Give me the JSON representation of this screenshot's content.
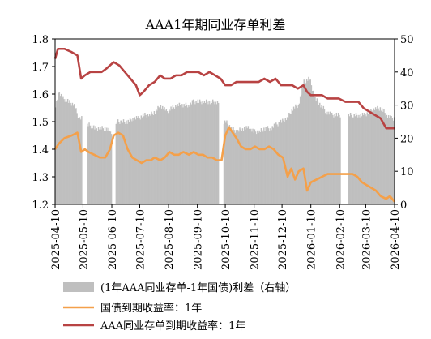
{
  "chart_data": {
    "type": "bar+line",
    "title": "AAA1年期同业存单利差",
    "yaxis_left": {
      "min": 1.2,
      "max": 1.8,
      "ticks": [
        "1.2",
        "1.3",
        "1.4",
        "1.5",
        "1.6",
        "1.7",
        "1.8"
      ]
    },
    "yaxis_right": {
      "min": 0,
      "max": 50,
      "ticks": [
        "0",
        "10",
        "20",
        "30",
        "40",
        "50"
      ]
    },
    "x_ticks": [
      "2025-04-10",
      "2025-05-10",
      "2025-06-10",
      "2025-07-10",
      "2025-08-10",
      "2025-09-10",
      "2025-10-10",
      "2025-11-10",
      "2025-12-10",
      "2026-01-10",
      "2026-02-10",
      "2026-03-10",
      "2026-04-10"
    ],
    "x_range": [
      "2025-04-10",
      "2026-04-10"
    ],
    "legend_position": "bottom",
    "series": [
      {
        "name": "(1年AAA同业存单-1年国债)利差（右轴）",
        "kind": "bar",
        "axis": "right",
        "color": "#bfbfbf",
        "points": [
          [
            "2025-04-10",
            30
          ],
          [
            "2025-04-14",
            34
          ],
          [
            "2025-04-18",
            32
          ],
          [
            "2025-04-24",
            31
          ],
          [
            "2025-04-30",
            30
          ],
          [
            "2025-05-05",
            26
          ],
          [
            "2025-05-12",
            0
          ],
          [
            "2025-05-16",
            24
          ],
          [
            "2025-05-22",
            23
          ],
          [
            "2025-05-28",
            23
          ],
          [
            "2025-06-03",
            23
          ],
          [
            "2025-06-08",
            22
          ],
          [
            "2025-06-12",
            0
          ],
          [
            "2025-06-15",
            25
          ],
          [
            "2025-06-20",
            25
          ],
          [
            "2025-06-26",
            25
          ],
          [
            "2025-07-02",
            26
          ],
          [
            "2025-07-08",
            26
          ],
          [
            "2025-07-14",
            27
          ],
          [
            "2025-07-20",
            27
          ],
          [
            "2025-07-26",
            28
          ],
          [
            "2025-08-01",
            30
          ],
          [
            "2025-08-07",
            28
          ],
          [
            "2025-08-13",
            29
          ],
          [
            "2025-08-19",
            30
          ],
          [
            "2025-08-25",
            30
          ],
          [
            "2025-08-31",
            30
          ],
          [
            "2025-09-05",
            31
          ],
          [
            "2025-09-11",
            31
          ],
          [
            "2025-09-17",
            31
          ],
          [
            "2025-09-23",
            31
          ],
          [
            "2025-09-29",
            31
          ],
          [
            "2025-10-06",
            0
          ],
          [
            "2025-10-10",
            25
          ],
          [
            "2025-10-16",
            23
          ],
          [
            "2025-10-22",
            22
          ],
          [
            "2025-10-28",
            23
          ],
          [
            "2025-11-03",
            23
          ],
          [
            "2025-11-09",
            22
          ],
          [
            "2025-11-15",
            22
          ],
          [
            "2025-11-21",
            23
          ],
          [
            "2025-11-27",
            23
          ],
          [
            "2025-12-03",
            24
          ],
          [
            "2025-12-09",
            25
          ],
          [
            "2025-12-15",
            26
          ],
          [
            "2025-12-21",
            29
          ],
          [
            "2025-12-27",
            30
          ],
          [
            "2026-01-02",
            37
          ],
          [
            "2026-01-08",
            38
          ],
          [
            "2026-01-14",
            32
          ],
          [
            "2026-01-20",
            30
          ],
          [
            "2026-01-26",
            28
          ],
          [
            "2026-02-01",
            27
          ],
          [
            "2026-02-07",
            27
          ],
          [
            "2026-02-14",
            0
          ],
          [
            "2026-02-24",
            27
          ],
          [
            "2026-03-02",
            27
          ],
          [
            "2026-03-08",
            27
          ],
          [
            "2026-03-14",
            28
          ],
          [
            "2026-03-20",
            29
          ],
          [
            "2026-03-26",
            29
          ],
          [
            "2026-04-01",
            27
          ],
          [
            "2026-04-06",
            26
          ],
          [
            "2026-04-10",
            26
          ]
        ]
      },
      {
        "name": "国债到期收益率：1年",
        "kind": "line",
        "axis": "left",
        "color": "#f4a04a",
        "points": [
          [
            "2025-04-10",
            1.4
          ],
          [
            "2025-04-14",
            1.42
          ],
          [
            "2025-04-20",
            1.44
          ],
          [
            "2025-04-28",
            1.45
          ],
          [
            "2025-05-04",
            1.46
          ],
          [
            "2025-05-08",
            1.39
          ],
          [
            "2025-05-12",
            1.4
          ],
          [
            "2025-05-16",
            1.39
          ],
          [
            "2025-05-22",
            1.38
          ],
          [
            "2025-05-28",
            1.37
          ],
          [
            "2025-06-03",
            1.37
          ],
          [
            "2025-06-08",
            1.4
          ],
          [
            "2025-06-12",
            1.45
          ],
          [
            "2025-06-17",
            1.46
          ],
          [
            "2025-06-22",
            1.45
          ],
          [
            "2025-06-27",
            1.4
          ],
          [
            "2025-07-02",
            1.37
          ],
          [
            "2025-07-07",
            1.36
          ],
          [
            "2025-07-12",
            1.35
          ],
          [
            "2025-07-17",
            1.36
          ],
          [
            "2025-07-22",
            1.36
          ],
          [
            "2025-07-26",
            1.37
          ],
          [
            "2025-08-01",
            1.36
          ],
          [
            "2025-08-06",
            1.37
          ],
          [
            "2025-08-11",
            1.39
          ],
          [
            "2025-08-16",
            1.38
          ],
          [
            "2025-08-21",
            1.38
          ],
          [
            "2025-08-26",
            1.39
          ],
          [
            "2025-09-01",
            1.38
          ],
          [
            "2025-09-06",
            1.39
          ],
          [
            "2025-09-11",
            1.38
          ],
          [
            "2025-09-16",
            1.38
          ],
          [
            "2025-09-21",
            1.37
          ],
          [
            "2025-09-26",
            1.37
          ],
          [
            "2025-10-01",
            1.36
          ],
          [
            "2025-10-06",
            1.36
          ],
          [
            "2025-10-10",
            1.45
          ],
          [
            "2025-10-14",
            1.48
          ],
          [
            "2025-10-18",
            1.46
          ],
          [
            "2025-10-22",
            1.44
          ],
          [
            "2025-10-27",
            1.41
          ],
          [
            "2025-11-01",
            1.4
          ],
          [
            "2025-11-06",
            1.4
          ],
          [
            "2025-11-11",
            1.41
          ],
          [
            "2025-11-16",
            1.4
          ],
          [
            "2025-11-21",
            1.4
          ],
          [
            "2025-11-26",
            1.41
          ],
          [
            "2025-12-01",
            1.4
          ],
          [
            "2025-12-06",
            1.38
          ],
          [
            "2025-12-11",
            1.37
          ],
          [
            "2025-12-16",
            1.3
          ],
          [
            "2025-12-20",
            1.33
          ],
          [
            "2025-12-24",
            1.29
          ],
          [
            "2025-12-28",
            1.32
          ],
          [
            "2026-01-02",
            1.33
          ],
          [
            "2026-01-06",
            1.25
          ],
          [
            "2026-01-10",
            1.28
          ],
          [
            "2026-01-16",
            1.29
          ],
          [
            "2026-01-22",
            1.3
          ],
          [
            "2026-01-28",
            1.31
          ],
          [
            "2026-02-03",
            1.31
          ],
          [
            "2026-02-09",
            1.31
          ],
          [
            "2026-02-16",
            1.31
          ],
          [
            "2026-02-24",
            1.31
          ],
          [
            "2026-03-01",
            1.3
          ],
          [
            "2026-03-06",
            1.28
          ],
          [
            "2026-03-11",
            1.27
          ],
          [
            "2026-03-16",
            1.26
          ],
          [
            "2026-03-21",
            1.25
          ],
          [
            "2026-03-26",
            1.23
          ],
          [
            "2026-04-01",
            1.22
          ],
          [
            "2026-04-05",
            1.23
          ],
          [
            "2026-04-10",
            1.21
          ]
        ]
      },
      {
        "name": "AAA同业存单到期收益率：1年",
        "kind": "line",
        "axis": "right",
        "color": "#b84343",
        "points": [
          [
            "2025-04-10",
            44
          ],
          [
            "2025-04-13",
            47
          ],
          [
            "2025-04-20",
            47
          ],
          [
            "2025-04-28",
            46
          ],
          [
            "2025-05-04",
            45
          ],
          [
            "2025-05-08",
            38
          ],
          [
            "2025-05-12",
            39
          ],
          [
            "2025-05-18",
            40
          ],
          [
            "2025-05-24",
            40
          ],
          [
            "2025-05-30",
            40
          ],
          [
            "2025-06-04",
            41
          ],
          [
            "2025-06-08",
            42
          ],
          [
            "2025-06-12",
            43
          ],
          [
            "2025-06-18",
            42
          ],
          [
            "2025-06-24",
            40
          ],
          [
            "2025-06-30",
            38
          ],
          [
            "2025-07-06",
            36
          ],
          [
            "2025-07-10",
            33
          ],
          [
            "2025-07-14",
            34
          ],
          [
            "2025-07-20",
            36
          ],
          [
            "2025-07-26",
            37
          ],
          [
            "2025-08-01",
            39
          ],
          [
            "2025-08-06",
            38
          ],
          [
            "2025-08-12",
            38
          ],
          [
            "2025-08-18",
            39
          ],
          [
            "2025-08-24",
            39
          ],
          [
            "2025-08-30",
            40
          ],
          [
            "2025-09-05",
            40
          ],
          [
            "2025-09-11",
            40
          ],
          [
            "2025-09-17",
            39
          ],
          [
            "2025-09-23",
            40
          ],
          [
            "2025-09-29",
            39
          ],
          [
            "2025-10-05",
            38
          ],
          [
            "2025-10-10",
            36
          ],
          [
            "2025-10-16",
            36
          ],
          [
            "2025-10-22",
            37
          ],
          [
            "2025-10-28",
            37
          ],
          [
            "2025-11-03",
            37
          ],
          [
            "2025-11-09",
            37
          ],
          [
            "2025-11-15",
            37
          ],
          [
            "2025-11-21",
            38
          ],
          [
            "2025-11-27",
            37
          ],
          [
            "2025-12-03",
            38
          ],
          [
            "2025-12-09",
            36
          ],
          [
            "2025-12-15",
            36
          ],
          [
            "2025-12-21",
            36
          ],
          [
            "2025-12-27",
            35
          ],
          [
            "2026-01-02",
            36
          ],
          [
            "2026-01-06",
            34
          ],
          [
            "2026-01-10",
            33
          ],
          [
            "2026-01-16",
            33
          ],
          [
            "2026-01-22",
            33
          ],
          [
            "2026-01-28",
            32
          ],
          [
            "2026-02-03",
            32
          ],
          [
            "2026-02-09",
            32
          ],
          [
            "2026-02-16",
            31
          ],
          [
            "2026-02-24",
            31
          ],
          [
            "2026-03-02",
            31
          ],
          [
            "2026-03-08",
            29
          ],
          [
            "2026-03-14",
            28
          ],
          [
            "2026-03-20",
            27
          ],
          [
            "2026-03-26",
            26
          ],
          [
            "2026-04-01",
            23
          ],
          [
            "2026-04-05",
            23
          ],
          [
            "2026-04-10",
            23
          ]
        ]
      }
    ]
  }
}
